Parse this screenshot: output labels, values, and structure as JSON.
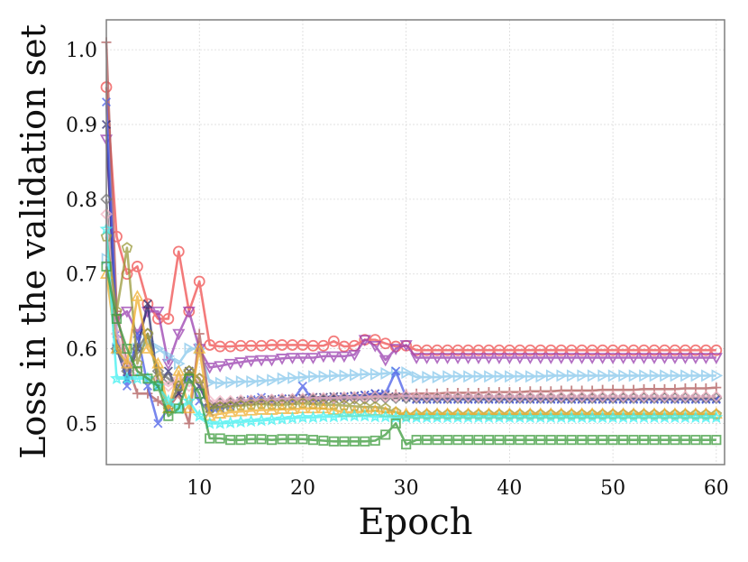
{
  "chart_data": {
    "type": "line",
    "title": "",
    "xlabel": "Epoch",
    "ylabel": "Loss in the validation set",
    "xlim": [
      1,
      60.8
    ],
    "ylim": [
      0.445,
      1.04
    ],
    "xticks": [
      10,
      20,
      30,
      40,
      50,
      60
    ],
    "yticks": [
      0.5,
      0.6,
      0.7,
      0.8,
      0.9,
      1.0
    ],
    "ytick_labels": [
      "0.5",
      "0.6",
      "0.7",
      "0.8",
      "0.9",
      "1.0"
    ],
    "grid": true,
    "legend": "none",
    "series": [
      {
        "name": "series-red-circle",
        "color": "#f05050",
        "marker": "circle",
        "values": [
          0.95,
          0.75,
          0.7,
          0.71,
          0.66,
          0.64,
          0.64,
          0.73,
          0.65,
          0.69,
          0.605,
          0.603,
          0.603,
          0.604,
          0.604,
          0.604,
          0.605,
          0.605,
          0.605,
          0.605,
          0.604,
          0.604,
          0.61,
          0.603,
          0.604,
          0.612,
          0.612,
          0.607,
          0.603,
          0.604,
          0.598,
          0.598,
          0.598,
          0.598,
          0.598,
          0.598,
          0.598,
          0.598,
          0.598,
          0.598,
          0.598,
          0.598,
          0.598,
          0.598,
          0.598,
          0.598,
          0.598,
          0.598,
          0.598,
          0.598,
          0.598,
          0.598,
          0.598,
          0.598,
          0.598,
          0.598,
          0.598,
          0.598,
          0.598,
          0.598
        ]
      },
      {
        "name": "series-purple-triangle-down",
        "color": "#9a3fb0",
        "marker": "triangle-down",
        "values": [
          0.88,
          0.64,
          0.65,
          0.62,
          0.65,
          0.65,
          0.58,
          0.62,
          0.65,
          0.6,
          0.575,
          0.577,
          0.58,
          0.582,
          0.584,
          0.585,
          0.585,
          0.587,
          0.588,
          0.588,
          0.588,
          0.59,
          0.59,
          0.59,
          0.592,
          0.612,
          0.604,
          0.585,
          0.6,
          0.605,
          0.588,
          0.588,
          0.588,
          0.588,
          0.588,
          0.588,
          0.588,
          0.588,
          0.588,
          0.588,
          0.588,
          0.588,
          0.588,
          0.588,
          0.588,
          0.588,
          0.588,
          0.588,
          0.588,
          0.588,
          0.588,
          0.588,
          0.588,
          0.588,
          0.588,
          0.588,
          0.588,
          0.588,
          0.588,
          0.588
        ]
      },
      {
        "name": "series-lightblue-triangle-right",
        "color": "#87c8ec",
        "marker": "triangle-right",
        "values": [
          0.72,
          0.6,
          0.58,
          0.6,
          0.61,
          0.6,
          0.59,
          0.58,
          0.6,
          0.6,
          0.555,
          0.554,
          0.555,
          0.556,
          0.556,
          0.557,
          0.558,
          0.56,
          0.561,
          0.562,
          0.563,
          0.563,
          0.564,
          0.564,
          0.565,
          0.566,
          0.566,
          0.567,
          0.568,
          0.568,
          0.562,
          0.562,
          0.562,
          0.563,
          0.563,
          0.563,
          0.563,
          0.563,
          0.563,
          0.563,
          0.563,
          0.563,
          0.563,
          0.564,
          0.564,
          0.564,
          0.564,
          0.564,
          0.564,
          0.564,
          0.564,
          0.564,
          0.564,
          0.564,
          0.564,
          0.564,
          0.564,
          0.564,
          0.564,
          0.564
        ]
      },
      {
        "name": "series-brown-plus",
        "color": "#b05a5a",
        "marker": "plus",
        "values": [
          1.01,
          0.65,
          0.58,
          0.54,
          0.54,
          0.53,
          0.52,
          0.54,
          0.5,
          0.62,
          0.525,
          0.527,
          0.528,
          0.53,
          0.53,
          0.531,
          0.531,
          0.532,
          0.532,
          0.533,
          0.534,
          0.534,
          0.535,
          0.535,
          0.536,
          0.537,
          0.537,
          0.538,
          0.539,
          0.539,
          0.54,
          0.54,
          0.54,
          0.541,
          0.541,
          0.541,
          0.541,
          0.542,
          0.542,
          0.542,
          0.542,
          0.543,
          0.543,
          0.543,
          0.544,
          0.544,
          0.544,
          0.544,
          0.545,
          0.545,
          0.545,
          0.545,
          0.546,
          0.546,
          0.546,
          0.546,
          0.547,
          0.547,
          0.547,
          0.548
        ]
      },
      {
        "name": "series-navy-x",
        "color": "#2b2b6e",
        "marker": "x",
        "values": [
          0.9,
          0.6,
          0.56,
          0.6,
          0.66,
          0.55,
          0.57,
          0.54,
          0.57,
          0.55,
          0.52,
          0.524,
          0.527,
          0.53,
          0.53,
          0.531,
          0.532,
          0.533,
          0.533,
          0.534,
          0.535,
          0.535,
          0.536,
          0.536,
          0.537,
          0.538,
          0.54,
          0.538,
          0.536,
          0.535,
          0.533,
          0.533,
          0.533,
          0.533,
          0.533,
          0.533,
          0.533,
          0.533,
          0.533,
          0.533,
          0.533,
          0.533,
          0.533,
          0.533,
          0.533,
          0.533,
          0.533,
          0.533,
          0.533,
          0.533,
          0.533,
          0.533,
          0.533,
          0.533,
          0.533,
          0.533,
          0.533,
          0.533,
          0.533,
          0.533
        ]
      },
      {
        "name": "series-blue-x",
        "color": "#4a5ee8",
        "marker": "x",
        "values": [
          0.93,
          0.62,
          0.55,
          0.62,
          0.55,
          0.5,
          0.52,
          0.55,
          0.56,
          0.53,
          0.515,
          0.52,
          0.523,
          0.528,
          0.532,
          0.535,
          0.53,
          0.533,
          0.53,
          0.55,
          0.53,
          0.532,
          0.533,
          0.535,
          0.536,
          0.538,
          0.54,
          0.54,
          0.57,
          0.535,
          0.532,
          0.532,
          0.532,
          0.532,
          0.532,
          0.532,
          0.532,
          0.532,
          0.532,
          0.532,
          0.532,
          0.532,
          0.532,
          0.532,
          0.532,
          0.532,
          0.532,
          0.532,
          0.532,
          0.532,
          0.532,
          0.532,
          0.532,
          0.532,
          0.532,
          0.532,
          0.532,
          0.532,
          0.532,
          0.532
        ]
      },
      {
        "name": "series-gray-diamond",
        "color": "#707070",
        "marker": "diamond",
        "values": [
          0.8,
          0.6,
          0.57,
          0.6,
          0.62,
          0.57,
          0.56,
          0.55,
          0.57,
          0.56,
          0.525,
          0.527,
          0.528,
          0.529,
          0.53,
          0.531,
          0.531,
          0.531,
          0.532,
          0.532,
          0.532,
          0.532,
          0.533,
          0.533,
          0.533,
          0.533,
          0.534,
          0.534,
          0.534,
          0.534,
          0.534,
          0.534,
          0.534,
          0.534,
          0.534,
          0.534,
          0.534,
          0.534,
          0.534,
          0.534,
          0.534,
          0.534,
          0.534,
          0.534,
          0.534,
          0.534,
          0.534,
          0.534,
          0.534,
          0.534,
          0.534,
          0.534,
          0.534,
          0.534,
          0.534,
          0.534,
          0.534,
          0.534,
          0.534,
          0.534
        ]
      },
      {
        "name": "series-pink-diamond",
        "color": "#f2b4c4",
        "marker": "diamond",
        "values": [
          0.78,
          0.62,
          0.58,
          0.57,
          0.56,
          0.56,
          0.55,
          0.56,
          0.55,
          0.56,
          0.53,
          0.53,
          0.53,
          0.531,
          0.531,
          0.532,
          0.532,
          0.533,
          0.533,
          0.533,
          0.534,
          0.534,
          0.534,
          0.535,
          0.535,
          0.535,
          0.536,
          0.536,
          0.536,
          0.537,
          0.536,
          0.536,
          0.536,
          0.536,
          0.536,
          0.536,
          0.536,
          0.536,
          0.536,
          0.536,
          0.536,
          0.536,
          0.536,
          0.536,
          0.536,
          0.536,
          0.536,
          0.536,
          0.536,
          0.536,
          0.536,
          0.536,
          0.536,
          0.536,
          0.536,
          0.536,
          0.536,
          0.536,
          0.536,
          0.536
        ]
      },
      {
        "name": "series-olive-pentagon",
        "color": "#9a9a3a",
        "marker": "pentagon",
        "values": [
          0.75,
          0.65,
          0.735,
          0.58,
          0.62,
          0.56,
          0.52,
          0.55,
          0.57,
          0.56,
          0.52,
          0.522,
          0.523,
          0.524,
          0.525,
          0.526,
          0.525,
          0.525,
          0.526,
          0.527,
          0.526,
          0.525,
          0.525,
          0.524,
          0.523,
          0.522,
          0.522,
          0.52,
          0.515,
          0.51,
          0.512,
          0.512,
          0.512,
          0.512,
          0.512,
          0.512,
          0.512,
          0.512,
          0.512,
          0.512,
          0.512,
          0.512,
          0.512,
          0.512,
          0.512,
          0.512,
          0.512,
          0.512,
          0.512,
          0.512,
          0.512,
          0.512,
          0.512,
          0.512,
          0.512,
          0.512,
          0.512,
          0.512,
          0.512,
          0.512
        ]
      },
      {
        "name": "series-orange-triangle-up",
        "color": "#f0b030",
        "marker": "triangle-up",
        "values": [
          0.7,
          0.6,
          0.58,
          0.67,
          0.6,
          0.58,
          0.52,
          0.57,
          0.52,
          0.6,
          0.51,
          0.513,
          0.515,
          0.516,
          0.517,
          0.518,
          0.518,
          0.519,
          0.519,
          0.52,
          0.52,
          0.52,
          0.518,
          0.515,
          0.515,
          0.516,
          0.517,
          0.515,
          0.515,
          0.513,
          0.513,
          0.513,
          0.513,
          0.513,
          0.513,
          0.513,
          0.513,
          0.513,
          0.513,
          0.513,
          0.513,
          0.513,
          0.513,
          0.513,
          0.513,
          0.513,
          0.513,
          0.513,
          0.513,
          0.513,
          0.513,
          0.513,
          0.513,
          0.513,
          0.513,
          0.513,
          0.513,
          0.513,
          0.513,
          0.513
        ]
      },
      {
        "name": "series-cyan-star",
        "color": "#3ff0f0",
        "marker": "star",
        "values": [
          0.76,
          0.56,
          0.56,
          0.56,
          0.56,
          0.55,
          0.53,
          0.52,
          0.53,
          0.51,
          0.5,
          0.5,
          0.501,
          0.502,
          0.503,
          0.504,
          0.505,
          0.506,
          0.507,
          0.508,
          0.508,
          0.509,
          0.509,
          0.51,
          0.51,
          0.51,
          0.509,
          0.509,
          0.508,
          0.508,
          0.508,
          0.508,
          0.508,
          0.508,
          0.508,
          0.508,
          0.508,
          0.508,
          0.508,
          0.508,
          0.508,
          0.508,
          0.508,
          0.508,
          0.508,
          0.508,
          0.508,
          0.508,
          0.508,
          0.508,
          0.508,
          0.508,
          0.508,
          0.508,
          0.508,
          0.508,
          0.508,
          0.508,
          0.508,
          0.508
        ]
      },
      {
        "name": "series-green-square",
        "color": "#3a9a3a",
        "marker": "square",
        "values": [
          0.71,
          0.64,
          0.6,
          0.57,
          0.56,
          0.55,
          0.51,
          0.52,
          0.56,
          0.54,
          0.48,
          0.48,
          0.478,
          0.478,
          0.479,
          0.479,
          0.478,
          0.479,
          0.479,
          0.479,
          0.478,
          0.477,
          0.476,
          0.476,
          0.476,
          0.476,
          0.477,
          0.485,
          0.5,
          0.472,
          0.478,
          0.478,
          0.478,
          0.478,
          0.478,
          0.478,
          0.478,
          0.478,
          0.478,
          0.478,
          0.478,
          0.478,
          0.478,
          0.478,
          0.478,
          0.478,
          0.478,
          0.478,
          0.478,
          0.478,
          0.478,
          0.478,
          0.478,
          0.478,
          0.478,
          0.478,
          0.478,
          0.478,
          0.478,
          0.478
        ]
      }
    ]
  }
}
